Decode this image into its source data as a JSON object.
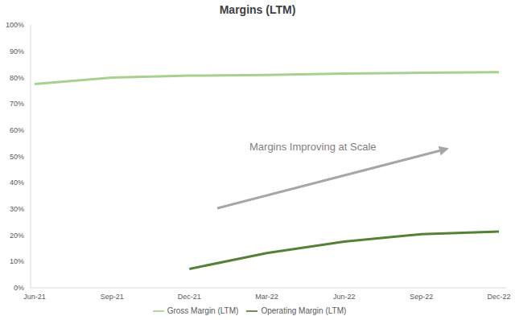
{
  "chart_data": {
    "type": "line",
    "title": "Margins (LTM)",
    "annotation": "Margins Improving at Scale",
    "categories": [
      "Jun-21",
      "Sep-21",
      "Dec-21",
      "Mar-22",
      "Jun-22",
      "Sep-22",
      "Dec-22"
    ],
    "series": [
      {
        "name": "Gross Margin (LTM)",
        "color": "#a9d18e",
        "values": [
          77.5,
          80,
          80.7,
          81,
          81.5,
          81.8,
          82
        ]
      },
      {
        "name": "Operating Margin (LTM)",
        "color": "#548235",
        "values": [
          null,
          null,
          7.2,
          13.2,
          17.6,
          20.4,
          21.4
        ]
      }
    ],
    "ylim": [
      0,
      100
    ],
    "yticks": [
      {
        "value": 0,
        "label": "0%"
      },
      {
        "value": 10,
        "label": "10%"
      },
      {
        "value": 20,
        "label": "20%"
      },
      {
        "value": 30,
        "label": "30%"
      },
      {
        "value": 40,
        "label": "40%"
      },
      {
        "value": 50,
        "label": "50%"
      },
      {
        "value": 60,
        "label": "60%"
      },
      {
        "value": 70,
        "label": "70%"
      },
      {
        "value": 80,
        "label": "80%"
      },
      {
        "value": 90,
        "label": "90%"
      },
      {
        "value": 100,
        "label": "100%"
      }
    ],
    "grid": false,
    "legend": "bottom"
  }
}
